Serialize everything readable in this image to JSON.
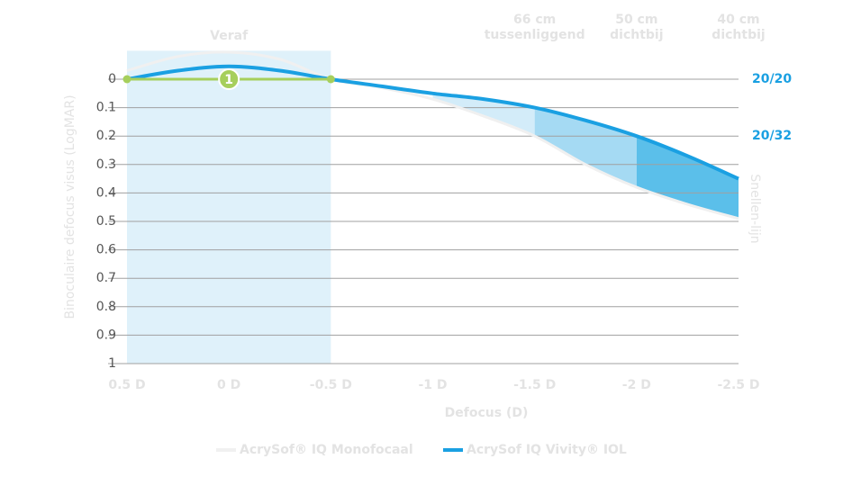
{
  "chart_data": {
    "type": "line",
    "x_label": "Defocus (D)",
    "y_label": "Binoculaire defocus visus (LogMAR)",
    "y2_label": "Snellen-lijn",
    "x": [
      0.5,
      0.25,
      0,
      -0.25,
      -0.5,
      -0.75,
      -1,
      -1.25,
      -1.5,
      -1.75,
      -2,
      -2.25,
      -2.5
    ],
    "series": [
      {
        "name": "AcrySof® IQ Monofocaal",
        "color": "#f0f0f0",
        "values": [
          -0.03,
          -0.08,
          -0.095,
          -0.07,
          0,
          0.03,
          0.07,
          0.13,
          0.2,
          0.3,
          0.38,
          0.44,
          0.49
        ]
      },
      {
        "name": "AcrySof IQ Vivity® IOL",
        "color": "#1aa0e2",
        "values": [
          0,
          -0.03,
          -0.045,
          -0.03,
          0,
          0.025,
          0.05,
          0.07,
          0.1,
          0.145,
          0.2,
          0.27,
          0.35
        ]
      }
    ],
    "xlim": [
      0.5,
      -2.5
    ],
    "xticks": [
      {
        "value": 0.5,
        "label": "0.5 D"
      },
      {
        "value": 0,
        "label": "0 D"
      },
      {
        "value": -0.5,
        "label": "-0.5 D"
      },
      {
        "value": -1,
        "label": "-1 D"
      },
      {
        "value": -1.5,
        "label": "-1.5 D"
      },
      {
        "value": -2,
        "label": "-2 D"
      },
      {
        "value": -2.5,
        "label": "-2.5 D"
      }
    ],
    "ylim": [
      -0.1,
      1
    ],
    "y_inverted": true,
    "yticks": [
      0,
      0.1,
      0.2,
      0.3,
      0.4,
      0.5,
      0.6,
      0.7,
      0.8,
      0.9,
      1
    ],
    "y2lim": [
      -0.1,
      1
    ],
    "y2ticks": [
      {
        "value": 0,
        "label": "20/20"
      },
      {
        "value": 0.2,
        "label": "20/32"
      }
    ],
    "grid": true,
    "far_zone": {
      "from": 0.5,
      "to": -0.5,
      "color": "#dff1fa",
      "label": "Veraf"
    },
    "distance_labels": [
      {
        "x": -1.5,
        "lines": [
          "66 cm",
          "tussenliggend"
        ]
      },
      {
        "x": -2,
        "lines": [
          "50 cm",
          "dichtbij"
        ]
      },
      {
        "x": -2.5,
        "lines": [
          "40 cm",
          "dichtbij"
        ]
      }
    ],
    "fills": [
      {
        "from": -1,
        "to": -1.5,
        "color": "#d3ecf9"
      },
      {
        "from": -1.5,
        "to": -2,
        "color": "#a5daf3"
      },
      {
        "from": -2,
        "to": -2.5,
        "color": "#5bbfea"
      }
    ],
    "range_marker": {
      "label": "1",
      "from": 0.5,
      "to": -0.5,
      "y": 0,
      "color": "#a6cf5c"
    }
  }
}
